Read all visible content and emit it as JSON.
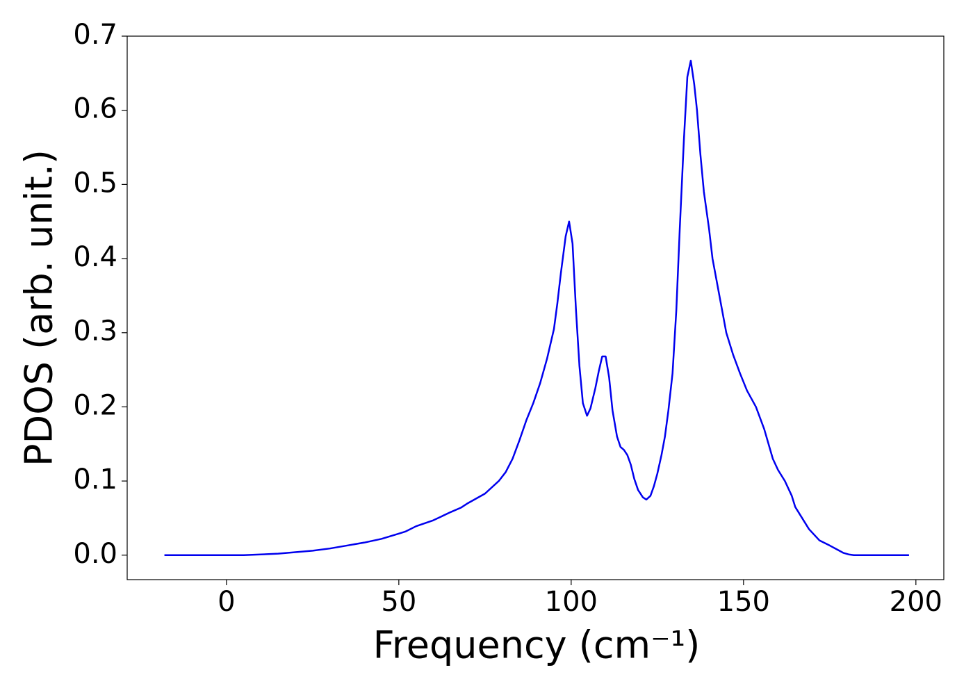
{
  "chart_data": {
    "type": "line",
    "xlabel": "Frequency (cm⁻¹)",
    "ylabel": "PDOS (arb. unit.)",
    "x": [
      -18,
      0,
      5,
      10,
      15,
      20,
      25,
      30,
      35,
      40,
      45,
      50,
      52,
      55,
      60,
      65,
      68,
      70,
      75,
      79,
      81,
      83,
      85,
      87,
      89,
      91,
      93,
      95,
      96,
      97,
      98.4,
      99.4,
      100.4,
      101.4,
      102.4,
      103.4,
      104.6,
      105.6,
      107,
      108,
      109,
      110,
      111,
      112,
      113.3,
      114.3,
      115.3,
      116.3,
      117.3,
      118.3,
      119.4,
      120.8,
      121.8,
      123,
      124,
      125,
      126.2,
      127.2,
      128.2,
      129.4,
      130.5,
      131.5,
      132.7,
      133.7,
      134.7,
      135.7,
      136.5,
      137.5,
      138.5,
      140,
      141,
      143,
      145,
      147,
      149,
      151,
      153.6,
      156,
      158.5,
      160,
      162,
      164,
      165,
      167,
      169,
      172,
      175,
      177,
      179,
      180.5,
      182,
      198
    ],
    "series": [
      {
        "name": "PDOS",
        "color": "#0000ee",
        "values": [
          0,
          0,
          0,
          0.001,
          0.002,
          0.004,
          0.006,
          0.009,
          0.013,
          0.017,
          0.022,
          0.029,
          0.032,
          0.039,
          0.047,
          0.058,
          0.064,
          0.07,
          0.083,
          0.1,
          0.112,
          0.13,
          0.155,
          0.182,
          0.205,
          0.232,
          0.265,
          0.305,
          0.34,
          0.38,
          0.43,
          0.45,
          0.42,
          0.33,
          0.255,
          0.205,
          0.188,
          0.198,
          0.225,
          0.248,
          0.268,
          0.268,
          0.24,
          0.195,
          0.16,
          0.146,
          0.142,
          0.135,
          0.122,
          0.103,
          0.088,
          0.078,
          0.075,
          0.08,
          0.093,
          0.11,
          0.135,
          0.16,
          0.195,
          0.245,
          0.33,
          0.44,
          0.56,
          0.645,
          0.667,
          0.635,
          0.6,
          0.54,
          0.49,
          0.44,
          0.4,
          0.35,
          0.3,
          0.27,
          0.245,
          0.222,
          0.2,
          0.17,
          0.13,
          0.115,
          0.1,
          0.08,
          0.065,
          0.05,
          0.035,
          0.02,
          0.013,
          0.008,
          0.003,
          0.001,
          0,
          0
        ]
      }
    ],
    "xlim": [
      -28.8,
      208.1
    ],
    "ylim": [
      -0.033,
      0.7
    ],
    "xticks": [
      0,
      50,
      100,
      150,
      200
    ],
    "yticks": [
      {
        "value": 0,
        "label": "0.0"
      },
      0.1,
      0.2,
      0.3,
      0.4,
      0.5,
      0.6,
      0.7
    ],
    "grid": false
  }
}
